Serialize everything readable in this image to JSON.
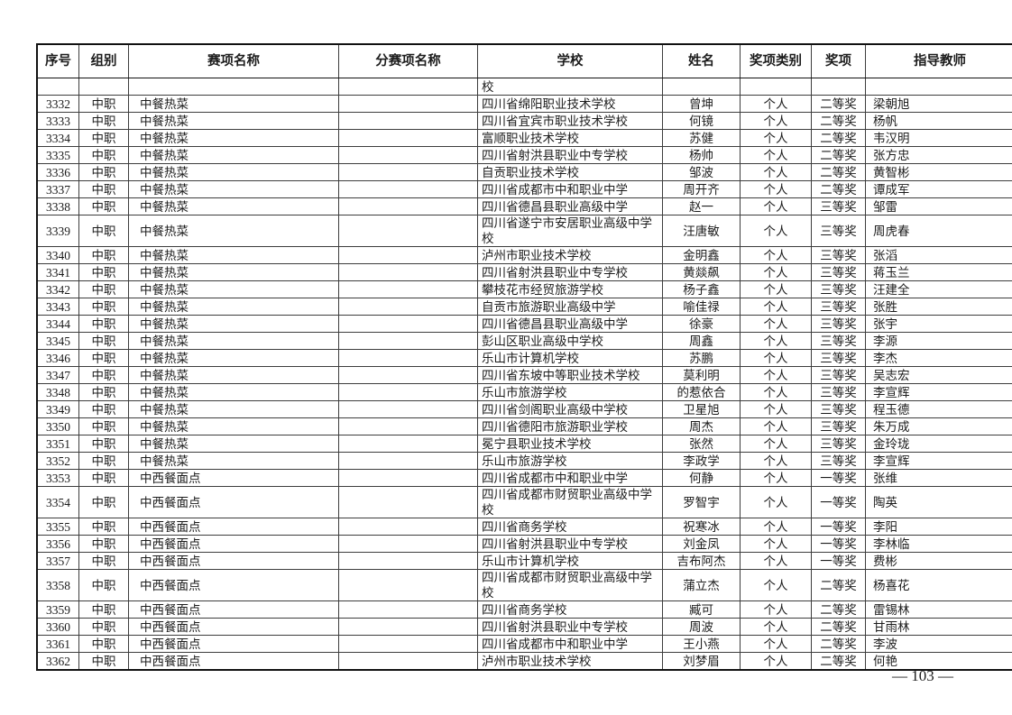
{
  "page": {
    "page_number": "— 103 —"
  },
  "table": {
    "columns": [
      {
        "key": "index",
        "label": "序号"
      },
      {
        "key": "group",
        "label": "组别"
      },
      {
        "key": "event",
        "label": "赛项名称"
      },
      {
        "key": "sub_event",
        "label": "分赛项名称"
      },
      {
        "key": "school",
        "label": "学校"
      },
      {
        "key": "name",
        "label": "姓名"
      },
      {
        "key": "award_category",
        "label": "奖项类别"
      },
      {
        "key": "award",
        "label": "奖项"
      },
      {
        "key": "teacher",
        "label": "指导教师"
      }
    ],
    "continuation_row": [
      "",
      "",
      "",
      "",
      "校",
      "",
      "",
      "",
      ""
    ],
    "rows": [
      [
        "3332",
        "中职",
        "中餐热菜",
        "",
        "四川省绵阳职业技术学校",
        "曾坤",
        "个人",
        "二等奖",
        "梁朝旭"
      ],
      [
        "3333",
        "中职",
        "中餐热菜",
        "",
        "四川省宜宾市职业技术学校",
        "何镜",
        "个人",
        "二等奖",
        "杨帆"
      ],
      [
        "3334",
        "中职",
        "中餐热菜",
        "",
        "富顺职业技术学校",
        "苏健",
        "个人",
        "二等奖",
        "韦汉明"
      ],
      [
        "3335",
        "中职",
        "中餐热菜",
        "",
        "四川省射洪县职业中专学校",
        "杨帅",
        "个人",
        "二等奖",
        "张方忠"
      ],
      [
        "3336",
        "中职",
        "中餐热菜",
        "",
        "自贡职业技术学校",
        "邹波",
        "个人",
        "二等奖",
        "黄智彬"
      ],
      [
        "3337",
        "中职",
        "中餐热菜",
        "",
        "四川省成都市中和职业中学",
        "周开齐",
        "个人",
        "二等奖",
        "谭成军"
      ],
      [
        "3338",
        "中职",
        "中餐热菜",
        "",
        "四川省德昌县职业高级中学",
        "赵一",
        "个人",
        "三等奖",
        "邹雷"
      ],
      [
        "3339",
        "中职",
        "中餐热菜",
        "",
        "四川省遂宁市安居职业高级中学校",
        "汪唐敏",
        "个人",
        "三等奖",
        "周虎春"
      ],
      [
        "3340",
        "中职",
        "中餐热菜",
        "",
        "泸州市职业技术学校",
        "金明鑫",
        "个人",
        "三等奖",
        "张滔"
      ],
      [
        "3341",
        "中职",
        "中餐热菜",
        "",
        "四川省射洪县职业中专学校",
        "黄燚飙",
        "个人",
        "三等奖",
        "蒋玉兰"
      ],
      [
        "3342",
        "中职",
        "中餐热菜",
        "",
        "攀枝花市经贸旅游学校",
        "杨子鑫",
        "个人",
        "三等奖",
        "汪建全"
      ],
      [
        "3343",
        "中职",
        "中餐热菜",
        "",
        "自贡市旅游职业高级中学",
        "喻佳禄",
        "个人",
        "三等奖",
        "张胜"
      ],
      [
        "3344",
        "中职",
        "中餐热菜",
        "",
        "四川省德昌县职业高级中学",
        "徐豪",
        "个人",
        "三等奖",
        "张宇"
      ],
      [
        "3345",
        "中职",
        "中餐热菜",
        "",
        "彭山区职业高级中学校",
        "周鑫",
        "个人",
        "三等奖",
        "李源"
      ],
      [
        "3346",
        "中职",
        "中餐热菜",
        "",
        "乐山市计算机学校",
        "苏鹏",
        "个人",
        "三等奖",
        "李杰"
      ],
      [
        "3347",
        "中职",
        "中餐热菜",
        "",
        "四川省东坡中等职业技术学校",
        "莫利明",
        "个人",
        "三等奖",
        "吴志宏"
      ],
      [
        "3348",
        "中职",
        "中餐热菜",
        "",
        "乐山市旅游学校",
        "的惹依合",
        "个人",
        "三等奖",
        "李宣辉"
      ],
      [
        "3349",
        "中职",
        "中餐热菜",
        "",
        "四川省剑阁职业高级中学校",
        "卫星旭",
        "个人",
        "三等奖",
        "程玉德"
      ],
      [
        "3350",
        "中职",
        "中餐热菜",
        "",
        "四川省德阳市旅游职业学校",
        "周杰",
        "个人",
        "三等奖",
        "朱万成"
      ],
      [
        "3351",
        "中职",
        "中餐热菜",
        "",
        "冕宁县职业技术学校",
        "张然",
        "个人",
        "三等奖",
        "金玲珑"
      ],
      [
        "3352",
        "中职",
        "中餐热菜",
        "",
        "乐山市旅游学校",
        "李政学",
        "个人",
        "三等奖",
        "李宣辉"
      ],
      [
        "3353",
        "中职",
        "中西餐面点",
        "",
        "四川省成都市中和职业中学",
        "何静",
        "个人",
        "一等奖",
        "张维"
      ],
      [
        "3354",
        "中职",
        "中西餐面点",
        "",
        "四川省成都市财贸职业高级中学校",
        "罗智宇",
        "个人",
        "一等奖",
        "陶英"
      ],
      [
        "3355",
        "中职",
        "中西餐面点",
        "",
        "四川省商务学校",
        "祝寒冰",
        "个人",
        "一等奖",
        "李阳"
      ],
      [
        "3356",
        "中职",
        "中西餐面点",
        "",
        "四川省射洪县职业中专学校",
        "刘金凤",
        "个人",
        "一等奖",
        "李林临"
      ],
      [
        "3357",
        "中职",
        "中西餐面点",
        "",
        "乐山市计算机学校",
        "吉布阿杰",
        "个人",
        "一等奖",
        "费彬"
      ],
      [
        "3358",
        "中职",
        "中西餐面点",
        "",
        "四川省成都市财贸职业高级中学校",
        "蒲立杰",
        "个人",
        "二等奖",
        "杨喜花"
      ],
      [
        "3359",
        "中职",
        "中西餐面点",
        "",
        "四川省商务学校",
        "臧可",
        "个人",
        "二等奖",
        "雷锡林"
      ],
      [
        "3360",
        "中职",
        "中西餐面点",
        "",
        "四川省射洪县职业中专学校",
        "周波",
        "个人",
        "二等奖",
        "甘雨林"
      ],
      [
        "3361",
        "中职",
        "中西餐面点",
        "",
        "四川省成都市中和职业中学",
        "王小燕",
        "个人",
        "二等奖",
        "李波"
      ],
      [
        "3362",
        "中职",
        "中西餐面点",
        "",
        "泸州市职业技术学校",
        "刘梦眉",
        "个人",
        "二等奖",
        "何艳"
      ]
    ]
  }
}
